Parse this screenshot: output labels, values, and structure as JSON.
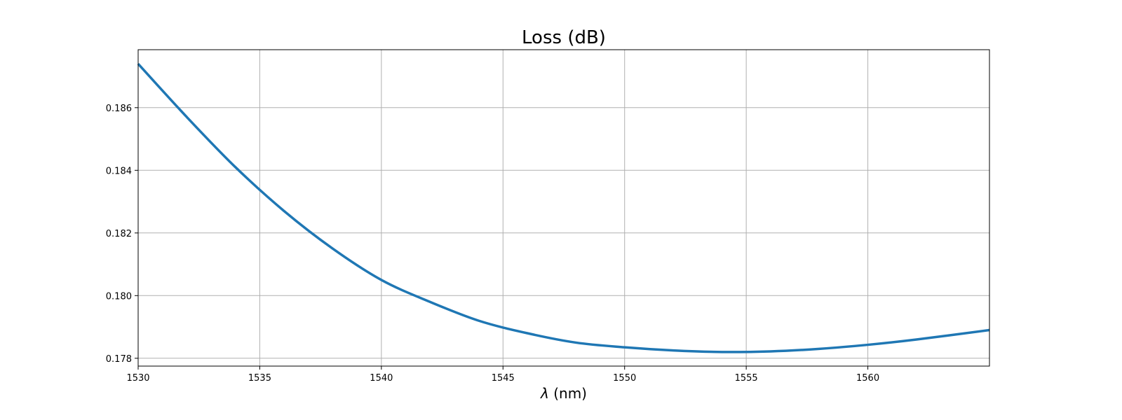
{
  "chart_data": {
    "type": "line",
    "title": "Loss (dB)",
    "xlabel_symbol": "λ",
    "xlabel_rest": " (nm)",
    "xlim": [
      1530,
      1565
    ],
    "ylim": [
      0.17775,
      0.18785
    ],
    "xticks": [
      1530,
      1535,
      1540,
      1545,
      1550,
      1555,
      1560
    ],
    "xtick_labels": [
      "1530",
      "1535",
      "1540",
      "1545",
      "1550",
      "1555",
      "1560"
    ],
    "yticks": [
      0.178,
      0.18,
      0.182,
      0.184,
      0.186
    ],
    "ytick_labels": [
      "0.178",
      "0.180",
      "0.182",
      "0.184",
      "0.186"
    ],
    "grid": true,
    "legend": "none",
    "colors": {
      "line": "#1f77b4",
      "grid": "#b0b0b0",
      "axes": "#000000"
    },
    "series": [
      {
        "x": [
          1530,
          1532,
          1534,
          1536,
          1538,
          1540,
          1542,
          1544,
          1546,
          1548,
          1550,
          1552,
          1554,
          1556,
          1558,
          1560,
          1562,
          1565
        ],
        "y": [
          0.1874,
          0.1857,
          0.1841,
          0.1827,
          0.1815,
          0.1805,
          0.1798,
          0.1792,
          0.1788,
          0.1785,
          0.17835,
          0.17825,
          0.1782,
          0.17822,
          0.1783,
          0.17843,
          0.1786,
          0.1789
        ]
      }
    ]
  }
}
